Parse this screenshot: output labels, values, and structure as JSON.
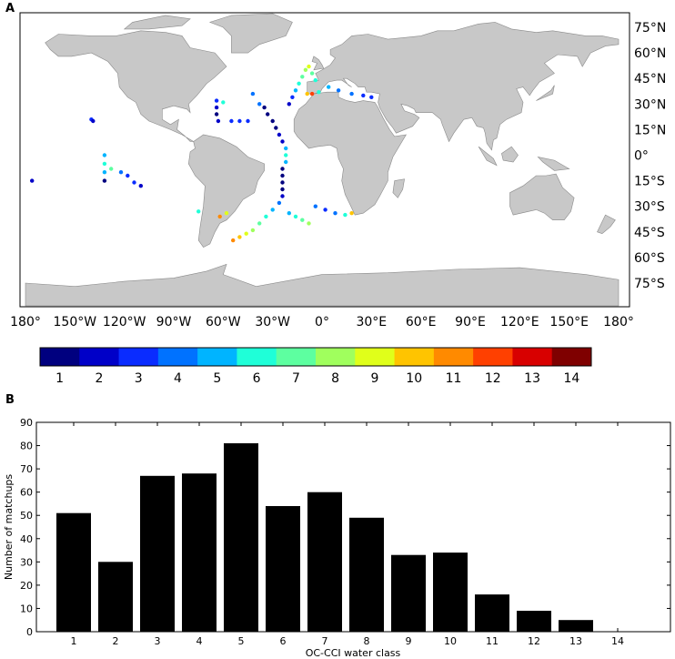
{
  "panel_a": {
    "letter": "A",
    "lat_labels": [
      "75°N",
      "60°N",
      "45°N",
      "30°N",
      "15°N",
      "0°",
      "15°S",
      "30°S",
      "45°S",
      "60°S",
      "75°S"
    ],
    "lon_labels": [
      "180°",
      "150°W",
      "120°W",
      "90°W",
      "60°W",
      "30°W",
      "0°",
      "30°E",
      "60°E",
      "90°E",
      "120°E",
      "150°E",
      "180°"
    ],
    "colorbar_labels": [
      "1",
      "2",
      "3",
      "4",
      "5",
      "6",
      "7",
      "8",
      "9",
      "10",
      "11",
      "12",
      "13",
      "14"
    ],
    "colorbar_colors": [
      "#00007f",
      "#0000c8",
      "#0a2cff",
      "#0072ff",
      "#00b4ff",
      "#1fffd8",
      "#5dffa0",
      "#a0ff5d",
      "#e0ff1a",
      "#ffc400",
      "#ff8a00",
      "#ff4000",
      "#d80000",
      "#7f0000"
    ],
    "land_color": "#c8c8c8",
    "ocean_color": "#ffffff"
  },
  "panel_b": {
    "letter": "B"
  },
  "chart_data": [
    {
      "type": "scatter",
      "title": "",
      "xlabel": "",
      "ylabel": "",
      "xlim": [
        -180,
        180
      ],
      "ylim": [
        -90,
        90
      ],
      "colorbar": {
        "min": 1,
        "max": 14,
        "categories": [
          1,
          2,
          3,
          4,
          5,
          6,
          7,
          8,
          9,
          10,
          11,
          12,
          13,
          14
        ]
      },
      "points": [
        {
          "lon": -140,
          "lat": 21,
          "c": 3
        },
        {
          "lon": -139,
          "lat": 20,
          "c": 2
        },
        {
          "lon": -132,
          "lat": 0,
          "c": 5
        },
        {
          "lon": -132,
          "lat": -5,
          "c": 6
        },
        {
          "lon": -132,
          "lat": -10,
          "c": 5
        },
        {
          "lon": -132,
          "lat": -15,
          "c": 1
        },
        {
          "lon": -128,
          "lat": -8,
          "c": 7
        },
        {
          "lon": -122,
          "lat": -10,
          "c": 4
        },
        {
          "lon": -118,
          "lat": -12,
          "c": 3
        },
        {
          "lon": -114,
          "lat": -16,
          "c": 3
        },
        {
          "lon": -110,
          "lat": -18,
          "c": 2
        },
        {
          "lon": -176,
          "lat": -15,
          "c": 2
        },
        {
          "lon": -64,
          "lat": 32,
          "c": 3
        },
        {
          "lon": -64,
          "lat": 28,
          "c": 2
        },
        {
          "lon": -64,
          "lat": 24,
          "c": 1
        },
        {
          "lon": -63,
          "lat": 20,
          "c": 2
        },
        {
          "lon": -60,
          "lat": 31,
          "c": 6
        },
        {
          "lon": -55,
          "lat": 20,
          "c": 3
        },
        {
          "lon": -50,
          "lat": 20,
          "c": 3
        },
        {
          "lon": -45,
          "lat": 20,
          "c": 3
        },
        {
          "lon": -42,
          "lat": 36,
          "c": 4
        },
        {
          "lon": -38,
          "lat": 30,
          "c": 4
        },
        {
          "lon": -35,
          "lat": 28,
          "c": 1
        },
        {
          "lon": -33,
          "lat": 24,
          "c": 1
        },
        {
          "lon": -30,
          "lat": 20,
          "c": 1
        },
        {
          "lon": -28,
          "lat": 16,
          "c": 1
        },
        {
          "lon": -26,
          "lat": 12,
          "c": 2
        },
        {
          "lon": -24,
          "lat": 8,
          "c": 2
        },
        {
          "lon": -22,
          "lat": 4,
          "c": 5
        },
        {
          "lon": -22,
          "lat": 0,
          "c": 6
        },
        {
          "lon": -22,
          "lat": -4,
          "c": 5
        },
        {
          "lon": -20,
          "lat": 30,
          "c": 2
        },
        {
          "lon": -18,
          "lat": 34,
          "c": 3
        },
        {
          "lon": -16,
          "lat": 38,
          "c": 5
        },
        {
          "lon": -14,
          "lat": 42,
          "c": 6
        },
        {
          "lon": -12,
          "lat": 46,
          "c": 7
        },
        {
          "lon": -10,
          "lat": 50,
          "c": 8
        },
        {
          "lon": -8,
          "lat": 52,
          "c": 9
        },
        {
          "lon": -6,
          "lat": 48,
          "c": 7
        },
        {
          "lon": -4,
          "lat": 44,
          "c": 6
        },
        {
          "lon": -9,
          "lat": 36,
          "c": 10
        },
        {
          "lon": -6,
          "lat": 36,
          "c": 12
        },
        {
          "lon": -2,
          "lat": 37,
          "c": 6
        },
        {
          "lon": 4,
          "lat": 40,
          "c": 5
        },
        {
          "lon": 10,
          "lat": 38,
          "c": 4
        },
        {
          "lon": 18,
          "lat": 36,
          "c": 4
        },
        {
          "lon": 25,
          "lat": 35,
          "c": 3
        },
        {
          "lon": 30,
          "lat": 34,
          "c": 3
        },
        {
          "lon": -24,
          "lat": -8,
          "c": 1
        },
        {
          "lon": -24,
          "lat": -12,
          "c": 1
        },
        {
          "lon": -24,
          "lat": -16,
          "c": 1
        },
        {
          "lon": -24,
          "lat": -20,
          "c": 1
        },
        {
          "lon": -24,
          "lat": -24,
          "c": 2
        },
        {
          "lon": -26,
          "lat": -28,
          "c": 4
        },
        {
          "lon": -30,
          "lat": -32,
          "c": 5
        },
        {
          "lon": -34,
          "lat": -36,
          "c": 6
        },
        {
          "lon": -38,
          "lat": -40,
          "c": 7
        },
        {
          "lon": -42,
          "lat": -44,
          "c": 8
        },
        {
          "lon": -46,
          "lat": -46,
          "c": 9
        },
        {
          "lon": -50,
          "lat": -48,
          "c": 10
        },
        {
          "lon": -54,
          "lat": -50,
          "c": 11
        },
        {
          "lon": -20,
          "lat": -34,
          "c": 5
        },
        {
          "lon": -16,
          "lat": -36,
          "c": 6
        },
        {
          "lon": -12,
          "lat": -38,
          "c": 7
        },
        {
          "lon": -8,
          "lat": -40,
          "c": 8
        },
        {
          "lon": -4,
          "lat": -30,
          "c": 4
        },
        {
          "lon": 2,
          "lat": -32,
          "c": 3
        },
        {
          "lon": 8,
          "lat": -34,
          "c": 4
        },
        {
          "lon": 14,
          "lat": -35,
          "c": 6
        },
        {
          "lon": 18,
          "lat": -34,
          "c": 10
        },
        {
          "lon": -62,
          "lat": -36,
          "c": 11
        },
        {
          "lon": -58,
          "lat": -34,
          "c": 9
        },
        {
          "lon": -75,
          "lat": -33,
          "c": 6
        }
      ]
    },
    {
      "type": "bar",
      "title": "",
      "xlabel": "OC-CCI water class",
      "ylabel": "Number of matchups",
      "categories": [
        "1",
        "2",
        "3",
        "4",
        "5",
        "6",
        "7",
        "8",
        "9",
        "10",
        "11",
        "12",
        "13",
        "14"
      ],
      "values": [
        51,
        30,
        67,
        68,
        81,
        54,
        60,
        49,
        33,
        34,
        16,
        9,
        5,
        0
      ],
      "ylim": [
        0,
        90
      ],
      "yticks": [
        "0",
        "10",
        "20",
        "30",
        "40",
        "50",
        "60",
        "70",
        "80",
        "90"
      ],
      "bar_color": "#000000",
      "grid": false
    }
  ]
}
